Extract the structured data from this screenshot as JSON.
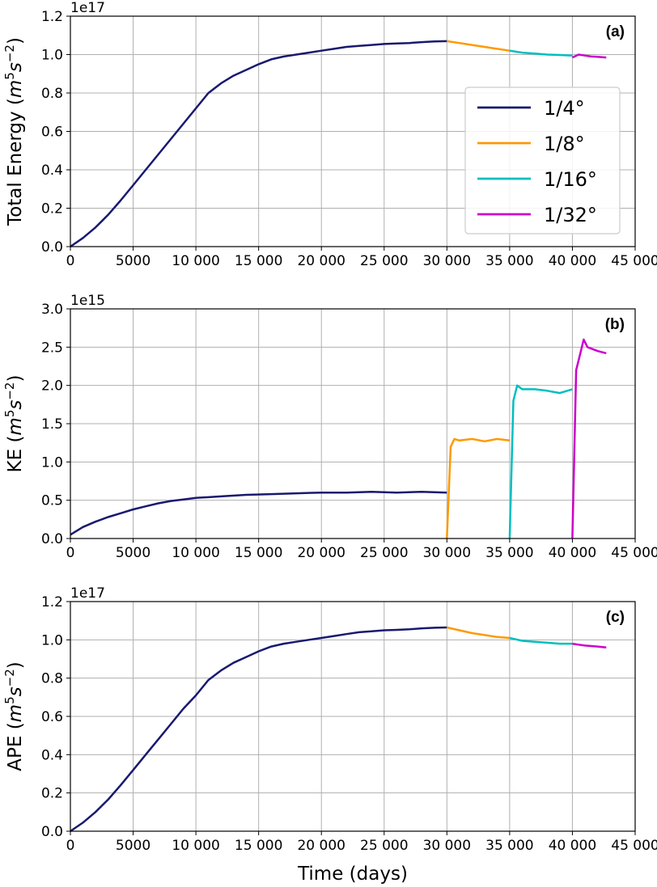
{
  "chart_data": [
    {
      "type": "line",
      "panel_tag": "(a)",
      "offset": "1e17",
      "ylabel_prefix": "Total Energy (",
      "units_unscaled": true,
      "ylim": [
        0.0,
        1.2
      ],
      "yticks": [
        0.0,
        0.2,
        0.4,
        0.6,
        0.8,
        1.0,
        1.2
      ],
      "yticklabels": [
        "0.0",
        "0.2",
        "0.4",
        "0.6",
        "0.8",
        "1.0",
        "1.2"
      ],
      "xlim": [
        0,
        45000
      ],
      "xticks": [
        0,
        5000,
        10000,
        15000,
        20000,
        25000,
        30000,
        35000,
        40000,
        45000
      ],
      "xticklabels": [
        "0",
        "5000",
        "10 000",
        "15 000",
        "20 000",
        "25 000",
        "30 000",
        "35 000",
        "40 000",
        "45 000"
      ],
      "grid": true,
      "legend": "upper-right",
      "series": [
        {
          "name": "1/4°",
          "color": "#191970",
          "x": [
            0,
            1000,
            2000,
            3000,
            4000,
            5000,
            6000,
            7000,
            8000,
            9000,
            10000,
            11000,
            12000,
            13000,
            14000,
            15000,
            16000,
            17000,
            18000,
            19000,
            20000,
            21000,
            22000,
            23000,
            24000,
            25000,
            26000,
            27000,
            28000,
            29000,
            30000
          ],
          "y": [
            0.0,
            0.045,
            0.1,
            0.165,
            0.24,
            0.32,
            0.4,
            0.48,
            0.56,
            0.64,
            0.72,
            0.8,
            0.85,
            0.89,
            0.92,
            0.95,
            0.975,
            0.99,
            1.0,
            1.01,
            1.02,
            1.03,
            1.04,
            1.045,
            1.05,
            1.055,
            1.058,
            1.06,
            1.065,
            1.068,
            1.07
          ]
        },
        {
          "name": "1/8°",
          "color": "#ff9900",
          "x": [
            30000,
            31000,
            32000,
            33000,
            34000,
            35000
          ],
          "y": [
            1.07,
            1.06,
            1.05,
            1.04,
            1.03,
            1.02
          ]
        },
        {
          "name": "1/16°",
          "color": "#00bfbf",
          "x": [
            35000,
            36000,
            37000,
            38000,
            39000,
            40000
          ],
          "y": [
            1.02,
            1.01,
            1.005,
            1.0,
            0.998,
            0.995
          ]
        },
        {
          "name": "1/32°",
          "color": "#cc00cc",
          "x": [
            40000,
            40500,
            41000,
            41500,
            42000,
            42700
          ],
          "y": [
            0.985,
            1.0,
            0.995,
            0.99,
            0.988,
            0.985
          ]
        }
      ]
    },
    {
      "type": "line",
      "panel_tag": "(b)",
      "offset": "1e15",
      "ylabel_prefix": "KE (",
      "units_unscaled": true,
      "ylim": [
        0.0,
        3.0
      ],
      "yticks": [
        0.0,
        0.5,
        1.0,
        1.5,
        2.0,
        2.5,
        3.0
      ],
      "yticklabels": [
        "0.0",
        "0.5",
        "1.0",
        "1.5",
        "2.0",
        "2.5",
        "3.0"
      ],
      "xlim": [
        0,
        45000
      ],
      "xticks": [
        0,
        5000,
        10000,
        15000,
        20000,
        25000,
        30000,
        35000,
        40000,
        45000
      ],
      "xticklabels": [
        "0",
        "5000",
        "10 000",
        "15 000",
        "20 000",
        "25 000",
        "30 000",
        "35 000",
        "40 000",
        "45 000"
      ],
      "grid": true,
      "series": [
        {
          "name": "1/4°",
          "color": "#191970",
          "x": [
            0,
            1000,
            2000,
            3000,
            4000,
            5000,
            6000,
            7000,
            8000,
            9000,
            10000,
            12000,
            14000,
            16000,
            18000,
            20000,
            22000,
            24000,
            26000,
            28000,
            30000
          ],
          "y": [
            0.05,
            0.15,
            0.22,
            0.28,
            0.33,
            0.38,
            0.42,
            0.46,
            0.49,
            0.51,
            0.53,
            0.55,
            0.57,
            0.58,
            0.59,
            0.6,
            0.6,
            0.61,
            0.6,
            0.61,
            0.6
          ]
        },
        {
          "name": "1/8°",
          "color": "#ff9900",
          "x": [
            30000,
            30300,
            30600,
            31000,
            32000,
            33000,
            34000,
            35000
          ],
          "y": [
            0.0,
            1.2,
            1.3,
            1.28,
            1.3,
            1.27,
            1.3,
            1.28
          ]
        },
        {
          "name": "1/16°",
          "color": "#00bfbf",
          "x": [
            35000,
            35300,
            35600,
            36000,
            37000,
            38000,
            39000,
            40000
          ],
          "y": [
            0.0,
            1.8,
            2.0,
            1.95,
            1.95,
            1.93,
            1.9,
            1.95
          ]
        },
        {
          "name": "1/32°",
          "color": "#cc00cc",
          "x": [
            40000,
            40300,
            40600,
            40900,
            41200,
            42000,
            42700
          ],
          "y": [
            0.0,
            2.2,
            2.4,
            2.6,
            2.5,
            2.45,
            2.42
          ]
        }
      ]
    },
    {
      "type": "line",
      "panel_tag": "(c)",
      "offset": "1e17",
      "ylabel_prefix": "APE (",
      "units_unscaled": true,
      "xlabel": "Time (days)",
      "ylim": [
        0.0,
        1.2
      ],
      "yticks": [
        0.0,
        0.2,
        0.4,
        0.6,
        0.8,
        1.0,
        1.2
      ],
      "yticklabels": [
        "0.0",
        "0.2",
        "0.4",
        "0.6",
        "0.8",
        "1.0",
        "1.2"
      ],
      "xlim": [
        0,
        45000
      ],
      "xticks": [
        0,
        5000,
        10000,
        15000,
        20000,
        25000,
        30000,
        35000,
        40000,
        45000
      ],
      "xticklabels": [
        "0",
        "5000",
        "10 000",
        "15 000",
        "20 000",
        "25 000",
        "30 000",
        "35 000",
        "40 000",
        "45 000"
      ],
      "grid": true,
      "series": [
        {
          "name": "1/4°",
          "color": "#191970",
          "x": [
            0,
            1000,
            2000,
            3000,
            4000,
            5000,
            6000,
            7000,
            8000,
            9000,
            10000,
            11000,
            12000,
            13000,
            14000,
            15000,
            16000,
            17000,
            18000,
            19000,
            20000,
            21000,
            22000,
            23000,
            24000,
            25000,
            26000,
            27000,
            28000,
            29000,
            30000
          ],
          "y": [
            0.0,
            0.045,
            0.1,
            0.165,
            0.24,
            0.32,
            0.4,
            0.48,
            0.56,
            0.64,
            0.71,
            0.79,
            0.84,
            0.88,
            0.91,
            0.94,
            0.965,
            0.98,
            0.99,
            1.0,
            1.01,
            1.02,
            1.03,
            1.04,
            1.045,
            1.05,
            1.052,
            1.055,
            1.06,
            1.063,
            1.065
          ]
        },
        {
          "name": "1/8°",
          "color": "#ff9900",
          "x": [
            30000,
            31000,
            32000,
            33000,
            34000,
            35000
          ],
          "y": [
            1.065,
            1.05,
            1.035,
            1.025,
            1.015,
            1.01
          ]
        },
        {
          "name": "1/16°",
          "color": "#00bfbf",
          "x": [
            35000,
            36000,
            37000,
            38000,
            39000,
            40000
          ],
          "y": [
            1.01,
            0.995,
            0.99,
            0.985,
            0.98,
            0.98
          ]
        },
        {
          "name": "1/32°",
          "color": "#cc00cc",
          "x": [
            40000,
            40500,
            41000,
            42000,
            42700
          ],
          "y": [
            0.98,
            0.975,
            0.97,
            0.965,
            0.96
          ]
        }
      ]
    }
  ],
  "legend": {
    "items": [
      {
        "label": "1/4°",
        "color": "#191970"
      },
      {
        "label": "1/8°",
        "color": "#ff9900"
      },
      {
        "label": "1/16°",
        "color": "#00bfbf"
      },
      {
        "label": "1/32°",
        "color": "#cc00cc"
      }
    ]
  },
  "units": {
    "base": "m",
    "base_exp": "5",
    "second": "s",
    "second_exp": "−2",
    "close": ")"
  }
}
